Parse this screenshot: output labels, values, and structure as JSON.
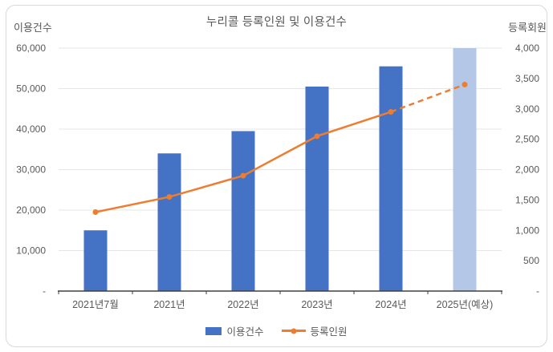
{
  "chart_data": {
    "type": "combo",
    "title": "누리콜 등록인원 및 이용건수",
    "categories": [
      "2021년7월",
      "2021년",
      "2022년",
      "2023년",
      "2024년",
      "2025년(예상)"
    ],
    "series": [
      {
        "name": "이용건수",
        "type": "bar",
        "axis": "left",
        "values": [
          15000,
          34000,
          39500,
          50500,
          55500,
          60000
        ],
        "forecast_index": 5
      },
      {
        "name": "등록인원",
        "type": "line",
        "axis": "right",
        "values": [
          1300,
          1550,
          1900,
          2550,
          2950,
          3400
        ],
        "dashed_from_index": 4
      }
    ],
    "left_axis": {
      "title": "이용건수",
      "min": 0,
      "max": 60000,
      "step": 10000,
      "zero_label": "-"
    },
    "right_axis": {
      "title": "등록회원",
      "min": 0,
      "max": 4000,
      "step": 500,
      "zero_label": "-"
    },
    "grid": "horizontal-on",
    "legend_position": "bottom"
  },
  "colors": {
    "bar": "#4472C4",
    "bar_forecast": "#B4C7E7",
    "line": "#ED7D31",
    "grid": "#E6E6E6",
    "axis_line": "#404040",
    "text": "#595959",
    "frame_border": "#D9D9D9"
  }
}
